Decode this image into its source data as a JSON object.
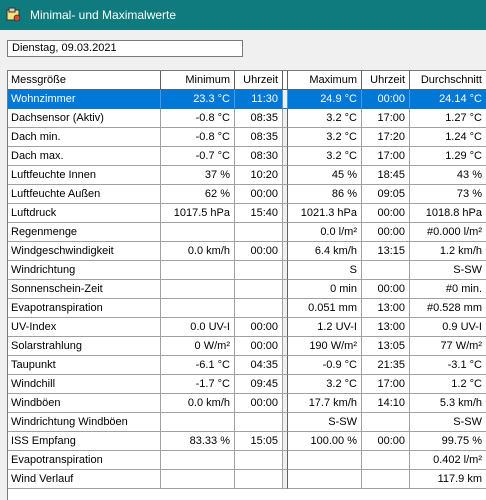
{
  "window": {
    "title": "Minimal- und Maximalwerte",
    "icon": "app-icon"
  },
  "date": "Dienstag, 09.03.2021",
  "table": {
    "columns": [
      "Messgröße",
      "Minimum",
      "Uhrzeit",
      "Maximum",
      "Uhrzeit",
      "Durchschnitt"
    ],
    "rows": [
      {
        "name": "Wohnzimmer",
        "min": "23.3 °C",
        "min_time": "11:30",
        "max": "24.9 °C",
        "max_time": "00:00",
        "avg": "24.14 °C",
        "selected": true
      },
      {
        "name": "Dachsensor (Aktiv)",
        "min": "-0.8 °C",
        "min_time": "08:35",
        "max": "3.2 °C",
        "max_time": "17:00",
        "avg": "1.27 °C"
      },
      {
        "name": "Dach min.",
        "min": "-0.8 °C",
        "min_time": "08:35",
        "max": "3.2 °C",
        "max_time": "17:20",
        "avg": "1.24 °C"
      },
      {
        "name": "Dach max.",
        "min": "-0.7 °C",
        "min_time": "08:30",
        "max": "3.2 °C",
        "max_time": "17:00",
        "avg": "1.29 °C"
      },
      {
        "name": "Luftfeuchte Innen",
        "min": "37 %",
        "min_time": "10:20",
        "max": "45 %",
        "max_time": "18:45",
        "avg": "43 %"
      },
      {
        "name": "Luftfeuchte Außen",
        "min": "62 %",
        "min_time": "00:00",
        "max": "86 %",
        "max_time": "09:05",
        "avg": "73 %"
      },
      {
        "name": "Luftdruck",
        "min": "1017.5 hPa",
        "min_time": "15:40",
        "max": "1021.3 hPa",
        "max_time": "00:00",
        "avg": "1018.8 hPa"
      },
      {
        "name": "Regenmenge",
        "min": "",
        "min_time": "",
        "max": "0.0 l/m²",
        "max_time": "00:00",
        "avg": "#0.000 l/m²"
      },
      {
        "name": "Windgeschwindigkeit",
        "min": "0.0 km/h",
        "min_time": "00:00",
        "max": "6.4 km/h",
        "max_time": "13:15",
        "avg": "1.2 km/h"
      },
      {
        "name": "Windrichtung",
        "min": "",
        "min_time": "",
        "max": "S",
        "max_time": "",
        "avg": "S-SW"
      },
      {
        "name": "Sonnenschein-Zeit",
        "min": "",
        "min_time": "",
        "max": "0 min",
        "max_time": "00:00",
        "avg": "#0 min."
      },
      {
        "name": "Evapotranspiration",
        "min": "",
        "min_time": "",
        "max": "0.051 mm",
        "max_time": "13:00",
        "avg": "#0.528 mm"
      },
      {
        "name": "UV-Index",
        "min": "0.0 UV-I",
        "min_time": "00:00",
        "max": "1.2 UV-I",
        "max_time": "13:00",
        "avg": "0.9 UV-I"
      },
      {
        "name": "Solarstrahlung",
        "min": "0 W/m²",
        "min_time": "00:00",
        "max": "190 W/m²",
        "max_time": "13:05",
        "avg": "77 W/m²"
      },
      {
        "name": "Taupunkt",
        "min": "-6.1 °C",
        "min_time": "04:35",
        "max": "-0.9 °C",
        "max_time": "21:35",
        "avg": "-3.1 °C"
      },
      {
        "name": "Windchill",
        "min": "-1.7 °C",
        "min_time": "09:45",
        "max": "3.2 °C",
        "max_time": "17:00",
        "avg": "1.2 °C"
      },
      {
        "name": "Windböen",
        "min": "0.0 km/h",
        "min_time": "00:00",
        "max": "17.7 km/h",
        "max_time": "14:10",
        "avg": "5.3 km/h"
      },
      {
        "name": "Windrichtung Windböen",
        "min": "",
        "min_time": "",
        "max": "S-SW",
        "max_time": "",
        "avg": "S-SW"
      },
      {
        "name": "ISS Empfang",
        "min": "83.33 %",
        "min_time": "15:05",
        "max": "100.00 %",
        "max_time": "00:00",
        "avg": "99.75 %"
      },
      {
        "name": "Evapotranspiration",
        "min": "",
        "min_time": "",
        "max": "",
        "max_time": "",
        "avg": "0.402 l/m²"
      },
      {
        "name": "Wind Verlauf",
        "min": "",
        "min_time": "",
        "max": "",
        "max_time": "",
        "avg": "117.9 km"
      }
    ]
  }
}
